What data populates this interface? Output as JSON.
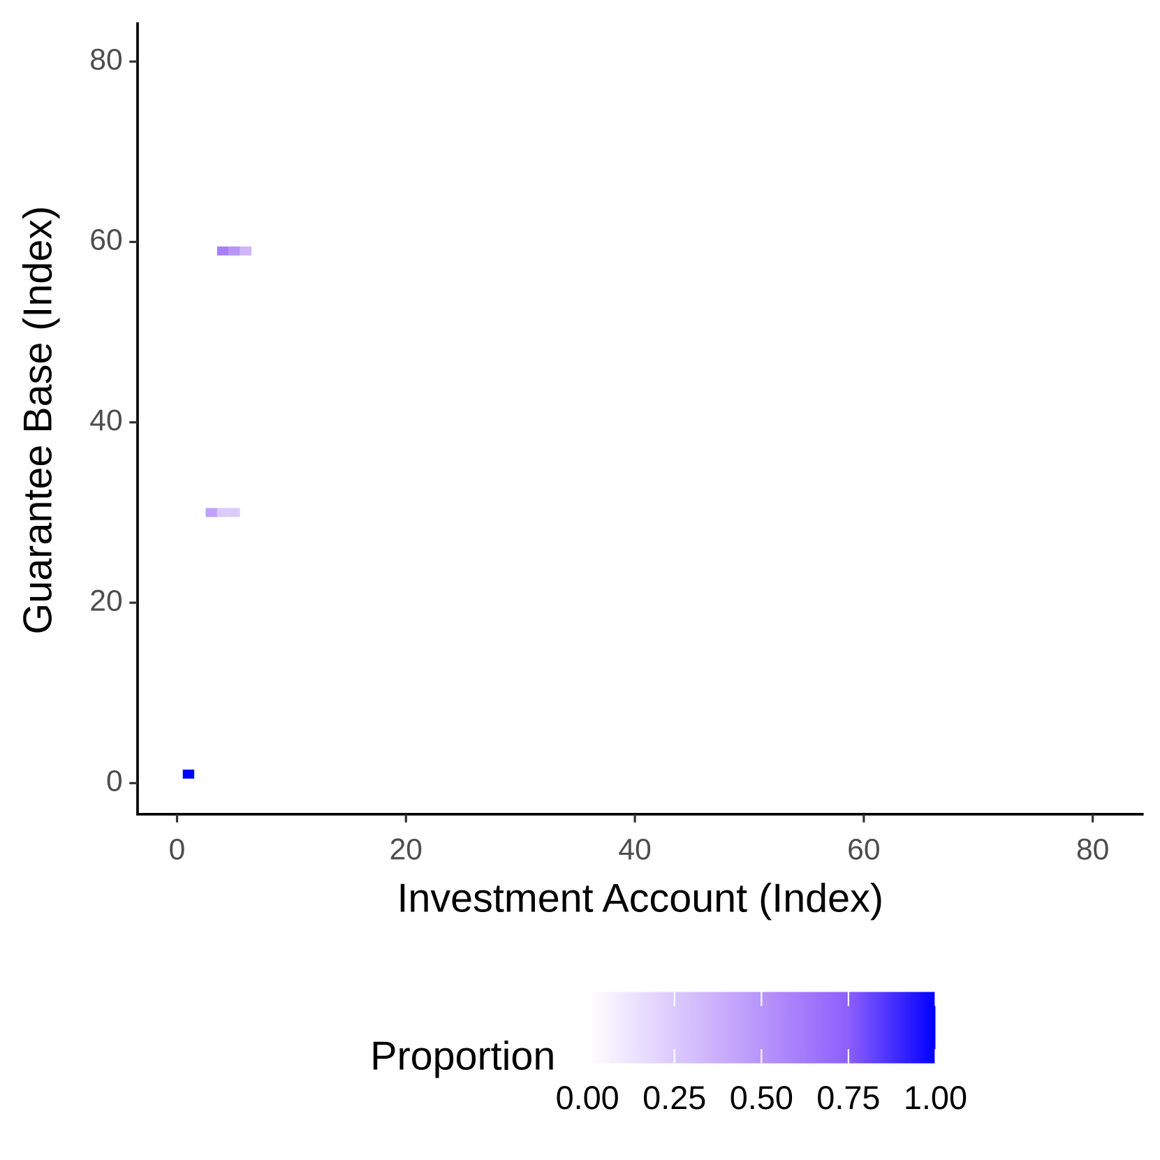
{
  "chart_data": {
    "type": "heatmap",
    "x_label": "Investment Account (Index)",
    "y_label": "Guarantee Base (Index)",
    "x": [
      1,
      3,
      4,
      5,
      4,
      5,
      6
    ],
    "y": [
      1,
      30,
      30,
      30,
      59,
      59,
      59
    ],
    "values": [
      1,
      0.45,
      0.25,
      0.25,
      0.6,
      0.5,
      0.35
    ],
    "xlim": [
      -3.45,
      84.45
    ],
    "ylim": [
      -3.45,
      84.35
    ],
    "xticks": [
      0,
      20,
      40,
      60,
      80
    ],
    "yticks": [
      0,
      20,
      40,
      60,
      80
    ],
    "legend": {
      "title": "Proportion",
      "position": "bottom",
      "colors": [
        "#ffffff",
        "#dccafd",
        "#b895fb",
        "#8d5ffc",
        "#0000ff"
      ],
      "limits": [
        0,
        1
      ],
      "ticks": [
        {
          "value": 0,
          "label": "0.00"
        },
        {
          "value": 0.25,
          "label": "0.25"
        },
        {
          "value": 0.5,
          "label": "0.50"
        },
        {
          "value": 0.75,
          "label": "0.75"
        },
        {
          "value": 1,
          "label": "1.00"
        }
      ]
    }
  }
}
